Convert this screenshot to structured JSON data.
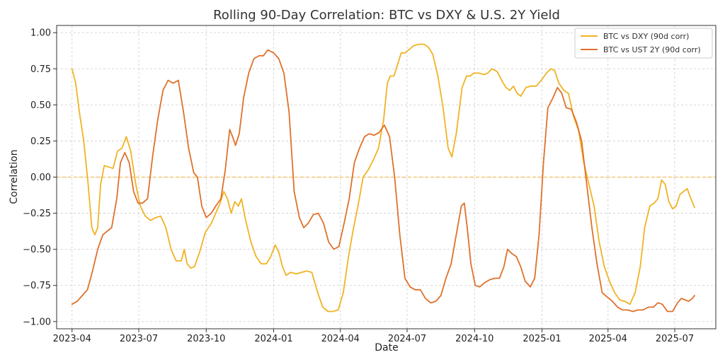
{
  "chart_data": {
    "type": "line",
    "title": "Rolling 90-Day Correlation: BTC vs DXY & U.S. 2Y Yield",
    "xlabel": "Date",
    "ylabel": "Correlation",
    "ylim": [
      -1.05,
      1.05
    ],
    "xlim": [
      "2023-03-11",
      "2025-08-26"
    ],
    "grid": true,
    "legend_position": "top-right",
    "reference_line": {
      "y": 0.0,
      "color": "#f0b23a",
      "style": "dashed"
    },
    "x_ticks": [
      "2023-04",
      "2023-07",
      "2023-10",
      "2024-01",
      "2024-04",
      "2024-07",
      "2024-10",
      "2025-01",
      "2025-04",
      "2025-07"
    ],
    "y_ticks": [
      1.0,
      0.75,
      0.5,
      0.25,
      0.0,
      -0.25,
      -0.5,
      -0.75,
      -1.0
    ],
    "y_tick_labels": [
      "1.00",
      "0.75",
      "0.50",
      "0.25",
      "0.00",
      "−0.25",
      "−0.50",
      "−0.75",
      "−1.00"
    ],
    "series": [
      {
        "name": "BTC vs DXY (90d corr)",
        "color": "#f0b323",
        "points": [
          [
            "2023-04-01",
            0.75
          ],
          [
            "2023-04-06",
            0.65
          ],
          [
            "2023-04-11",
            0.45
          ],
          [
            "2023-04-17",
            0.25
          ],
          [
            "2023-04-23",
            -0.05
          ],
          [
            "2023-04-28",
            -0.35
          ],
          [
            "2023-05-02",
            -0.4
          ],
          [
            "2023-05-06",
            -0.35
          ],
          [
            "2023-05-10",
            -0.05
          ],
          [
            "2023-05-15",
            0.08
          ],
          [
            "2023-05-21",
            0.07
          ],
          [
            "2023-05-27",
            0.06
          ],
          [
            "2023-06-02",
            0.18
          ],
          [
            "2023-06-08",
            0.2
          ],
          [
            "2023-06-14",
            0.28
          ],
          [
            "2023-06-20",
            0.18
          ],
          [
            "2023-06-27",
            -0.05
          ],
          [
            "2023-07-03",
            -0.2
          ],
          [
            "2023-07-10",
            -0.27
          ],
          [
            "2023-07-17",
            -0.3
          ],
          [
            "2023-07-24",
            -0.28
          ],
          [
            "2023-07-31",
            -0.27
          ],
          [
            "2023-08-07",
            -0.35
          ],
          [
            "2023-08-14",
            -0.5
          ],
          [
            "2023-08-21",
            -0.58
          ],
          [
            "2023-08-28",
            -0.58
          ],
          [
            "2023-09-01",
            -0.5
          ],
          [
            "2023-09-05",
            -0.6
          ],
          [
            "2023-09-10",
            -0.63
          ],
          [
            "2023-09-15",
            -0.62
          ],
          [
            "2023-09-22",
            -0.52
          ],
          [
            "2023-09-30",
            -0.38
          ],
          [
            "2023-10-08",
            -0.32
          ],
          [
            "2023-10-14",
            -0.25
          ],
          [
            "2023-10-20",
            -0.18
          ],
          [
            "2023-10-25",
            -0.1
          ],
          [
            "2023-10-30",
            -0.15
          ],
          [
            "2023-11-04",
            -0.25
          ],
          [
            "2023-11-09",
            -0.17
          ],
          [
            "2023-11-14",
            -0.2
          ],
          [
            "2023-11-18",
            -0.15
          ],
          [
            "2023-11-23",
            -0.28
          ],
          [
            "2023-12-01",
            -0.45
          ],
          [
            "2023-12-08",
            -0.55
          ],
          [
            "2023-12-15",
            -0.6
          ],
          [
            "2023-12-22",
            -0.6
          ],
          [
            "2023-12-28",
            -0.55
          ],
          [
            "2024-01-03",
            -0.47
          ],
          [
            "2024-01-08",
            -0.52
          ],
          [
            "2024-01-13",
            -0.62
          ],
          [
            "2024-01-18",
            -0.68
          ],
          [
            "2024-01-24",
            -0.66
          ],
          [
            "2024-02-01",
            -0.67
          ],
          [
            "2024-02-08",
            -0.66
          ],
          [
            "2024-02-15",
            -0.65
          ],
          [
            "2024-02-22",
            -0.66
          ],
          [
            "2024-03-01",
            -0.8
          ],
          [
            "2024-03-08",
            -0.9
          ],
          [
            "2024-03-15",
            -0.93
          ],
          [
            "2024-03-22",
            -0.93
          ],
          [
            "2024-03-29",
            -0.92
          ],
          [
            "2024-04-05",
            -0.8
          ],
          [
            "2024-04-12",
            -0.55
          ],
          [
            "2024-04-19",
            -0.35
          ],
          [
            "2024-04-25",
            -0.2
          ],
          [
            "2024-05-02",
            0.0
          ],
          [
            "2024-05-09",
            0.05
          ],
          [
            "2024-05-16",
            0.12
          ],
          [
            "2024-05-23",
            0.2
          ],
          [
            "2024-05-30",
            0.4
          ],
          [
            "2024-06-04",
            0.65
          ],
          [
            "2024-06-08",
            0.7
          ],
          [
            "2024-06-13",
            0.7
          ],
          [
            "2024-06-18",
            0.78
          ],
          [
            "2024-06-23",
            0.86
          ],
          [
            "2024-06-28",
            0.86
          ],
          [
            "2024-07-03",
            0.88
          ],
          [
            "2024-07-10",
            0.91
          ],
          [
            "2024-07-17",
            0.92
          ],
          [
            "2024-07-24",
            0.92
          ],
          [
            "2024-07-30",
            0.9
          ],
          [
            "2024-08-05",
            0.85
          ],
          [
            "2024-08-12",
            0.7
          ],
          [
            "2024-08-19",
            0.48
          ],
          [
            "2024-08-26",
            0.2
          ],
          [
            "2024-08-31",
            0.14
          ],
          [
            "2024-09-06",
            0.3
          ],
          [
            "2024-09-14",
            0.62
          ],
          [
            "2024-09-20",
            0.7
          ],
          [
            "2024-09-25",
            0.7
          ],
          [
            "2024-09-30",
            0.72
          ],
          [
            "2024-10-07",
            0.72
          ],
          [
            "2024-10-14",
            0.71
          ],
          [
            "2024-10-19",
            0.72
          ],
          [
            "2024-10-25",
            0.75
          ],
          [
            "2024-11-01",
            0.73
          ],
          [
            "2024-11-08",
            0.66
          ],
          [
            "2024-11-13",
            0.62
          ],
          [
            "2024-11-18",
            0.6
          ],
          [
            "2024-11-23",
            0.63
          ],
          [
            "2024-11-28",
            0.58
          ],
          [
            "2024-12-03",
            0.56
          ],
          [
            "2024-12-10",
            0.62
          ],
          [
            "2024-12-17",
            0.63
          ],
          [
            "2024-12-24",
            0.63
          ],
          [
            "2024-12-31",
            0.67
          ],
          [
            "2025-01-07",
            0.72
          ],
          [
            "2025-01-13",
            0.75
          ],
          [
            "2025-01-18",
            0.74
          ],
          [
            "2025-01-24",
            0.65
          ],
          [
            "2025-01-31",
            0.6
          ],
          [
            "2025-02-06",
            0.58
          ],
          [
            "2025-02-13",
            0.42
          ],
          [
            "2025-02-20",
            0.32
          ],
          [
            "2025-02-27",
            0.1
          ],
          [
            "2025-03-06",
            -0.05
          ],
          [
            "2025-03-13",
            -0.2
          ],
          [
            "2025-03-20",
            -0.45
          ],
          [
            "2025-03-27",
            -0.62
          ],
          [
            "2025-04-03",
            -0.72
          ],
          [
            "2025-04-10",
            -0.8
          ],
          [
            "2025-04-17",
            -0.85
          ],
          [
            "2025-04-24",
            -0.86
          ],
          [
            "2025-05-01",
            -0.88
          ],
          [
            "2025-05-08",
            -0.8
          ],
          [
            "2025-05-15",
            -0.62
          ],
          [
            "2025-05-21",
            -0.35
          ],
          [
            "2025-05-28",
            -0.2
          ],
          [
            "2025-06-03",
            -0.18
          ],
          [
            "2025-06-08",
            -0.15
          ],
          [
            "2025-06-13",
            -0.02
          ],
          [
            "2025-06-18",
            -0.05
          ],
          [
            "2025-06-23",
            -0.17
          ],
          [
            "2025-06-28",
            -0.22
          ],
          [
            "2025-07-03",
            -0.2
          ],
          [
            "2025-07-08",
            -0.12
          ],
          [
            "2025-07-13",
            -0.1
          ],
          [
            "2025-07-18",
            -0.08
          ],
          [
            "2025-07-23",
            -0.15
          ],
          [
            "2025-07-28",
            -0.21
          ]
        ]
      },
      {
        "name": "BTC vs UST 2Y (90d corr)",
        "color": "#e0702a",
        "points": [
          [
            "2023-04-01",
            -0.88
          ],
          [
            "2023-04-08",
            -0.86
          ],
          [
            "2023-04-15",
            -0.82
          ],
          [
            "2023-04-22",
            -0.78
          ],
          [
            "2023-04-29",
            -0.65
          ],
          [
            "2023-05-06",
            -0.5
          ],
          [
            "2023-05-13",
            -0.4
          ],
          [
            "2023-05-20",
            -0.37
          ],
          [
            "2023-05-25",
            -0.35
          ],
          [
            "2023-06-01",
            -0.15
          ],
          [
            "2023-06-06",
            0.1
          ],
          [
            "2023-06-12",
            0.17
          ],
          [
            "2023-06-18",
            0.1
          ],
          [
            "2023-06-24",
            -0.1
          ],
          [
            "2023-06-30",
            -0.18
          ],
          [
            "2023-07-06",
            -0.18
          ],
          [
            "2023-07-13",
            -0.15
          ],
          [
            "2023-07-20",
            0.15
          ],
          [
            "2023-07-27",
            0.4
          ],
          [
            "2023-08-03",
            0.6
          ],
          [
            "2023-08-10",
            0.67
          ],
          [
            "2023-08-17",
            0.65
          ],
          [
            "2023-08-24",
            0.67
          ],
          [
            "2023-08-31",
            0.45
          ],
          [
            "2023-09-07",
            0.2
          ],
          [
            "2023-09-14",
            0.03
          ],
          [
            "2023-09-19",
            0.0
          ],
          [
            "2023-09-25",
            -0.2
          ],
          [
            "2023-10-01",
            -0.28
          ],
          [
            "2023-10-08",
            -0.25
          ],
          [
            "2023-10-14",
            -0.2
          ],
          [
            "2023-10-21",
            -0.15
          ],
          [
            "2023-10-27",
            0.05
          ],
          [
            "2023-11-02",
            0.33
          ],
          [
            "2023-11-06",
            0.28
          ],
          [
            "2023-11-10",
            0.22
          ],
          [
            "2023-11-15",
            0.3
          ],
          [
            "2023-11-21",
            0.55
          ],
          [
            "2023-11-28",
            0.72
          ],
          [
            "2023-12-05",
            0.82
          ],
          [
            "2023-12-12",
            0.84
          ],
          [
            "2023-12-18",
            0.84
          ],
          [
            "2023-12-24",
            0.88
          ],
          [
            "2024-01-01",
            0.86
          ],
          [
            "2024-01-08",
            0.82
          ],
          [
            "2024-01-15",
            0.72
          ],
          [
            "2024-01-22",
            0.45
          ],
          [
            "2024-01-29",
            -0.1
          ],
          [
            "2024-02-05",
            -0.28
          ],
          [
            "2024-02-11",
            -0.35
          ],
          [
            "2024-02-17",
            -0.32
          ],
          [
            "2024-02-24",
            -0.26
          ],
          [
            "2024-03-02",
            -0.25
          ],
          [
            "2024-03-09",
            -0.32
          ],
          [
            "2024-03-16",
            -0.45
          ],
          [
            "2024-03-23",
            -0.5
          ],
          [
            "2024-03-30",
            -0.48
          ],
          [
            "2024-04-06",
            -0.32
          ],
          [
            "2024-04-13",
            -0.15
          ],
          [
            "2024-04-20",
            0.1
          ],
          [
            "2024-04-27",
            0.2
          ],
          [
            "2024-05-04",
            0.28
          ],
          [
            "2024-05-10",
            0.3
          ],
          [
            "2024-05-17",
            0.29
          ],
          [
            "2024-05-24",
            0.31
          ],
          [
            "2024-05-31",
            0.36
          ],
          [
            "2024-06-07",
            0.28
          ],
          [
            "2024-06-14",
            0.0
          ],
          [
            "2024-06-21",
            -0.4
          ],
          [
            "2024-06-28",
            -0.7
          ],
          [
            "2024-07-05",
            -0.76
          ],
          [
            "2024-07-12",
            -0.78
          ],
          [
            "2024-07-19",
            -0.78
          ],
          [
            "2024-07-26",
            -0.84
          ],
          [
            "2024-08-02",
            -0.87
          ],
          [
            "2024-08-09",
            -0.86
          ],
          [
            "2024-08-16",
            -0.82
          ],
          [
            "2024-08-23",
            -0.7
          ],
          [
            "2024-08-30",
            -0.6
          ],
          [
            "2024-09-06",
            -0.4
          ],
          [
            "2024-09-13",
            -0.2
          ],
          [
            "2024-09-17",
            -0.18
          ],
          [
            "2024-09-21",
            -0.35
          ],
          [
            "2024-09-26",
            -0.6
          ],
          [
            "2024-10-02",
            -0.75
          ],
          [
            "2024-10-08",
            -0.76
          ],
          [
            "2024-10-15",
            -0.73
          ],
          [
            "2024-10-22",
            -0.71
          ],
          [
            "2024-10-29",
            -0.7
          ],
          [
            "2024-11-04",
            -0.7
          ],
          [
            "2024-11-10",
            -0.62
          ],
          [
            "2024-11-15",
            -0.5
          ],
          [
            "2024-11-21",
            -0.53
          ],
          [
            "2024-11-27",
            -0.55
          ],
          [
            "2024-12-03",
            -0.62
          ],
          [
            "2024-12-09",
            -0.72
          ],
          [
            "2024-12-16",
            -0.76
          ],
          [
            "2024-12-22",
            -0.7
          ],
          [
            "2024-12-28",
            -0.4
          ],
          [
            "2025-01-03",
            0.1
          ],
          [
            "2025-01-09",
            0.48
          ],
          [
            "2025-01-16",
            0.55
          ],
          [
            "2025-01-22",
            0.62
          ],
          [
            "2025-01-28",
            0.58
          ],
          [
            "2025-02-03",
            0.48
          ],
          [
            "2025-02-10",
            0.47
          ],
          [
            "2025-02-17",
            0.38
          ],
          [
            "2025-02-24",
            0.25
          ],
          [
            "2025-03-03",
            -0.05
          ],
          [
            "2025-03-10",
            -0.35
          ],
          [
            "2025-03-17",
            -0.6
          ],
          [
            "2025-03-24",
            -0.8
          ],
          [
            "2025-03-31",
            -0.83
          ],
          [
            "2025-04-07",
            -0.86
          ],
          [
            "2025-04-14",
            -0.9
          ],
          [
            "2025-04-21",
            -0.92
          ],
          [
            "2025-04-28",
            -0.92
          ],
          [
            "2025-05-05",
            -0.93
          ],
          [
            "2025-05-12",
            -0.92
          ],
          [
            "2025-05-19",
            -0.92
          ],
          [
            "2025-05-26",
            -0.9
          ],
          [
            "2025-06-02",
            -0.9
          ],
          [
            "2025-06-08",
            -0.87
          ],
          [
            "2025-06-14",
            -0.88
          ],
          [
            "2025-06-21",
            -0.93
          ],
          [
            "2025-06-28",
            -0.93
          ],
          [
            "2025-07-05",
            -0.87
          ],
          [
            "2025-07-10",
            -0.84
          ],
          [
            "2025-07-15",
            -0.85
          ],
          [
            "2025-07-20",
            -0.86
          ],
          [
            "2025-07-25",
            -0.84
          ],
          [
            "2025-07-28",
            -0.82
          ]
        ]
      }
    ]
  }
}
